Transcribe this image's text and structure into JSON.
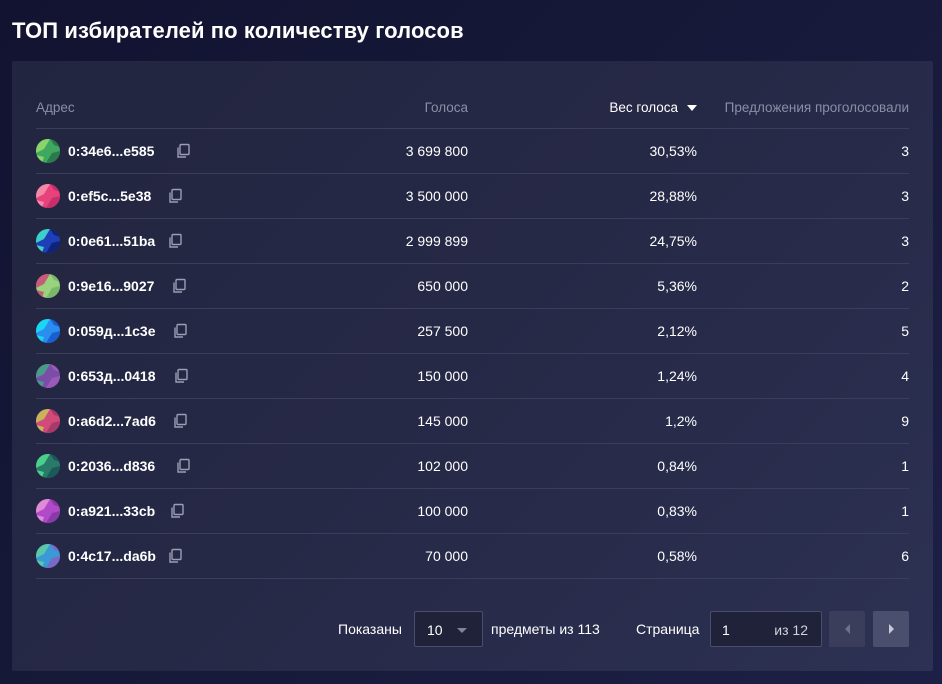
{
  "title": "ТОП избирателей по количеству голосов",
  "columns": {
    "address": "Адрес",
    "votes": "Голоса",
    "weight": "Вес голоса",
    "proposals": "Предложения проголосовали"
  },
  "rows": [
    {
      "address": "0:34e6...e585",
      "votes": "3 699 800",
      "weight": "30,53%",
      "proposals": "3",
      "colors": [
        "#3fa860",
        "#8bd36b",
        "#2b7a4b"
      ]
    },
    {
      "address": "0:ef5c...5e38",
      "votes": "3 500 000",
      "weight": "28,88%",
      "proposals": "3",
      "colors": [
        "#e8427c",
        "#f28aa6",
        "#c72f6a"
      ]
    },
    {
      "address": "0:0e61...51ba",
      "votes": "2 999 899",
      "weight": "24,75%",
      "proposals": "3",
      "colors": [
        "#1f3fb8",
        "#3cd0c8",
        "#0e237a"
      ]
    },
    {
      "address": "0:9e16...9027",
      "votes": "650 000",
      "weight": "5,36%",
      "proposals": "2",
      "colors": [
        "#9ad37e",
        "#c85a7a",
        "#7ab86a"
      ]
    },
    {
      "address": "0:059д...1c3e",
      "votes": "257 500",
      "weight": "2,12%",
      "proposals": "5",
      "colors": [
        "#2a8ef0",
        "#1bd6f2",
        "#1a5fcf"
      ]
    },
    {
      "address": "0:653д...0418",
      "votes": "150 000",
      "weight": "1,24%",
      "proposals": "4",
      "colors": [
        "#7a4ea8",
        "#4a9a8a",
        "#9a5ab8"
      ]
    },
    {
      "address": "0:a6d2...7ad6",
      "votes": "145 000",
      "weight": "1,2%",
      "proposals": "9",
      "colors": [
        "#d04a7a",
        "#c8b35a",
        "#a83a6a"
      ]
    },
    {
      "address": "0:2036...d836",
      "votes": "102 000",
      "weight": "0,84%",
      "proposals": "1",
      "colors": [
        "#2a7a6a",
        "#4ad08a",
        "#1a5a5a"
      ]
    },
    {
      "address": "0:a921...33cb",
      "votes": "100 000",
      "weight": "0,83%",
      "proposals": "1",
      "colors": [
        "#b04ac8",
        "#e08ad8",
        "#8a3aa8"
      ]
    },
    {
      "address": "0:4c17...da6b",
      "votes": "70 000",
      "weight": "0,58%",
      "proposals": "6",
      "colors": [
        "#3a9ad8",
        "#5ac8a8",
        "#7a6ac8"
      ]
    }
  ],
  "footer": {
    "shown_label": "Показаны",
    "page_size": "10",
    "of_items": "предметы из 113",
    "page_label": "Страница",
    "page_current": "1",
    "page_of": "из 12"
  }
}
